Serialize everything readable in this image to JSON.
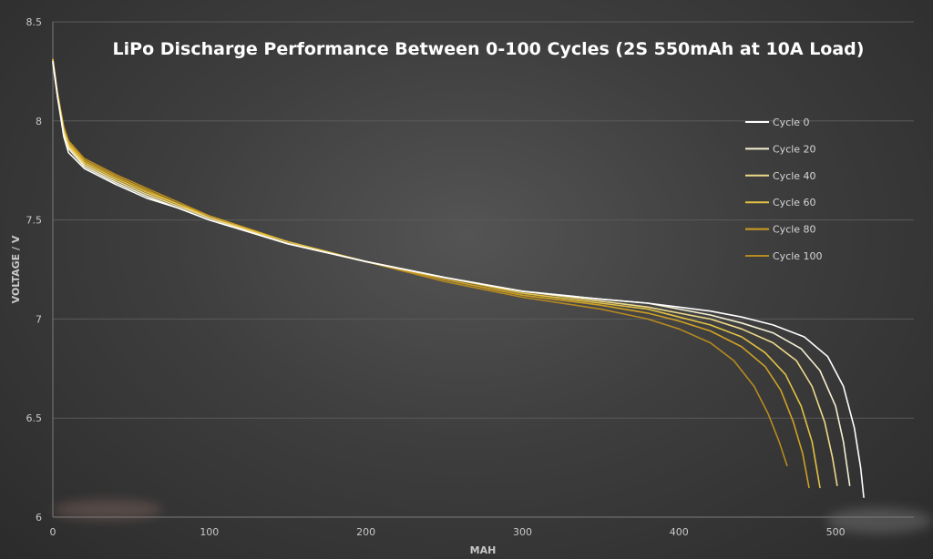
{
  "chart_data": {
    "type": "line",
    "title": "LiPo Discharge Performance Between 0-100 Cycles (2S 550mAh at 10A Load)",
    "xlabel": "MAH",
    "ylabel": "VOLTAGE / V",
    "xlim": [
      0,
      550
    ],
    "ylim": [
      6,
      8.5
    ],
    "x_ticks": [
      "0",
      "100",
      "200",
      "300",
      "400",
      "500"
    ],
    "x_tick_values": [
      0,
      100,
      200,
      300,
      400,
      500
    ],
    "y_ticks": [
      "6",
      "6.5",
      "7",
      "7.5",
      "8",
      "8.5"
    ],
    "y_tick_values": [
      6,
      6.5,
      7,
      7.5,
      8,
      8.5
    ],
    "grid": "horizontal",
    "legend_position": "right",
    "series": [
      {
        "name": "Cycle 0",
        "color": "#ffffff",
        "points": [
          [
            0,
            8.3
          ],
          [
            3,
            8.12
          ],
          [
            7,
            7.92
          ],
          [
            10,
            7.84
          ],
          [
            20,
            7.76
          ],
          [
            40,
            7.68
          ],
          [
            60,
            7.61
          ],
          [
            80,
            7.56
          ],
          [
            100,
            7.5
          ],
          [
            150,
            7.38
          ],
          [
            200,
            7.29
          ],
          [
            250,
            7.21
          ],
          [
            300,
            7.14
          ],
          [
            350,
            7.1
          ],
          [
            380,
            7.08
          ],
          [
            400,
            7.06
          ],
          [
            420,
            7.04
          ],
          [
            440,
            7.01
          ],
          [
            460,
            6.97
          ],
          [
            480,
            6.91
          ],
          [
            495,
            6.81
          ],
          [
            505,
            6.66
          ],
          [
            512,
            6.45
          ],
          [
            516,
            6.25
          ],
          [
            518,
            6.1
          ]
        ]
      },
      {
        "name": "Cycle 20",
        "color": "#f4efd2",
        "points": [
          [
            0,
            8.29
          ],
          [
            3,
            8.12
          ],
          [
            7,
            7.93
          ],
          [
            10,
            7.86
          ],
          [
            20,
            7.77
          ],
          [
            40,
            7.69
          ],
          [
            60,
            7.62
          ],
          [
            80,
            7.56
          ],
          [
            100,
            7.5
          ],
          [
            150,
            7.38
          ],
          [
            200,
            7.29
          ],
          [
            250,
            7.21
          ],
          [
            300,
            7.14
          ],
          [
            350,
            7.1
          ],
          [
            380,
            7.08
          ],
          [
            400,
            7.05
          ],
          [
            420,
            7.02
          ],
          [
            440,
            6.98
          ],
          [
            460,
            6.93
          ],
          [
            478,
            6.85
          ],
          [
            490,
            6.74
          ],
          [
            500,
            6.56
          ],
          [
            505,
            6.38
          ],
          [
            509,
            6.16
          ]
        ]
      },
      {
        "name": "Cycle 40",
        "color": "#eed98a",
        "points": [
          [
            0,
            8.3
          ],
          [
            3,
            8.12
          ],
          [
            7,
            7.94
          ],
          [
            10,
            7.87
          ],
          [
            20,
            7.78
          ],
          [
            40,
            7.7
          ],
          [
            60,
            7.63
          ],
          [
            80,
            7.57
          ],
          [
            100,
            7.51
          ],
          [
            150,
            7.38
          ],
          [
            200,
            7.29
          ],
          [
            250,
            7.21
          ],
          [
            300,
            7.14
          ],
          [
            350,
            7.09
          ],
          [
            380,
            7.06
          ],
          [
            400,
            7.03
          ],
          [
            420,
            7.0
          ],
          [
            440,
            6.95
          ],
          [
            460,
            6.88
          ],
          [
            475,
            6.79
          ],
          [
            485,
            6.66
          ],
          [
            493,
            6.48
          ],
          [
            498,
            6.3
          ],
          [
            501,
            6.16
          ]
        ]
      },
      {
        "name": "Cycle 60",
        "color": "#e3c243",
        "points": [
          [
            0,
            8.31
          ],
          [
            3,
            8.13
          ],
          [
            7,
            7.95
          ],
          [
            10,
            7.88
          ],
          [
            20,
            7.79
          ],
          [
            40,
            7.71
          ],
          [
            60,
            7.64
          ],
          [
            80,
            7.58
          ],
          [
            100,
            7.51
          ],
          [
            150,
            7.39
          ],
          [
            200,
            7.29
          ],
          [
            250,
            7.21
          ],
          [
            300,
            7.13
          ],
          [
            350,
            7.08
          ],
          [
            380,
            7.05
          ],
          [
            400,
            7.01
          ],
          [
            420,
            6.97
          ],
          [
            440,
            6.91
          ],
          [
            455,
            6.83
          ],
          [
            468,
            6.72
          ],
          [
            478,
            6.56
          ],
          [
            485,
            6.38
          ],
          [
            490,
            6.15
          ]
        ]
      },
      {
        "name": "Cycle 80",
        "color": "#cfa023",
        "points": [
          [
            0,
            8.31
          ],
          [
            3,
            8.13
          ],
          [
            7,
            7.96
          ],
          [
            10,
            7.89
          ],
          [
            20,
            7.8
          ],
          [
            40,
            7.72
          ],
          [
            60,
            7.65
          ],
          [
            80,
            7.58
          ],
          [
            100,
            7.52
          ],
          [
            150,
            7.39
          ],
          [
            200,
            7.29
          ],
          [
            250,
            7.2
          ],
          [
            300,
            7.12
          ],
          [
            350,
            7.07
          ],
          [
            380,
            7.03
          ],
          [
            400,
            6.99
          ],
          [
            420,
            6.94
          ],
          [
            440,
            6.86
          ],
          [
            455,
            6.76
          ],
          [
            465,
            6.64
          ],
          [
            473,
            6.48
          ],
          [
            479,
            6.32
          ],
          [
            483,
            6.15
          ]
        ]
      },
      {
        "name": "Cycle 100",
        "color": "#b78a1f",
        "points": [
          [
            0,
            8.31
          ],
          [
            3,
            8.14
          ],
          [
            7,
            7.97
          ],
          [
            10,
            7.9
          ],
          [
            20,
            7.81
          ],
          [
            40,
            7.73
          ],
          [
            60,
            7.66
          ],
          [
            80,
            7.59
          ],
          [
            100,
            7.52
          ],
          [
            150,
            7.39
          ],
          [
            200,
            7.29
          ],
          [
            250,
            7.19
          ],
          [
            300,
            7.11
          ],
          [
            350,
            7.05
          ],
          [
            380,
            7.0
          ],
          [
            400,
            6.95
          ],
          [
            420,
            6.88
          ],
          [
            435,
            6.79
          ],
          [
            448,
            6.66
          ],
          [
            457,
            6.52
          ],
          [
            464,
            6.38
          ],
          [
            469,
            6.26
          ]
        ]
      }
    ]
  }
}
